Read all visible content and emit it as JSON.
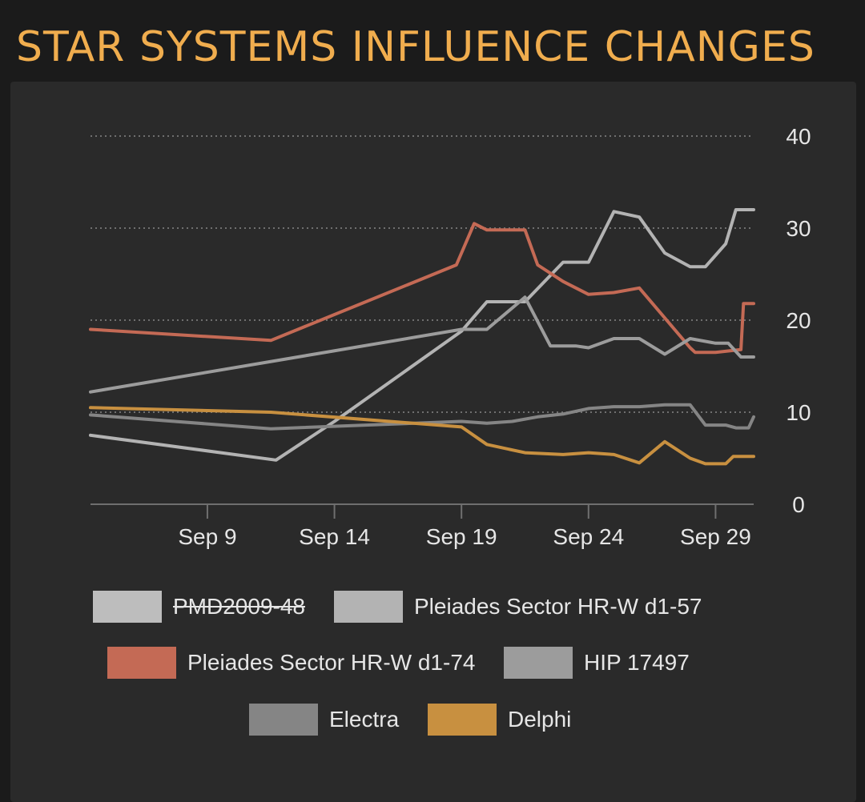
{
  "page": {
    "title": "STAR SYSTEMS INFLUENCE CHANGES"
  },
  "chart_data": {
    "type": "line",
    "title": "STAR SYSTEMS INFLUENCE CHANGES",
    "xlabel": "",
    "ylabel": "",
    "x_tick_labels": [
      "Sep 9",
      "Sep 14",
      "Sep 19",
      "Sep 24",
      "Sep 29"
    ],
    "x_tick_days": [
      9,
      14,
      19,
      24,
      29
    ],
    "xlim": [
      4.4,
      30.5
    ],
    "ylim": [
      0,
      40
    ],
    "y_ticks": [
      0,
      10,
      20,
      30,
      40
    ],
    "y_axis_position": "right",
    "grid": "horizontal-dotted",
    "legend_position": "bottom",
    "series": [
      {
        "name": "PMD2009 48",
        "legend_label": "PMD2009-48",
        "color": "#bdbdbd",
        "hidden": true,
        "x": [],
        "y": []
      },
      {
        "name": "Pleiades Sector HR-W d1-57",
        "legend_label": "Pleiades Sector HR-W d1-57",
        "color": "#b3b3b3",
        "hidden": false,
        "x": [
          4.4,
          11.7,
          14.0,
          19.0,
          20.0,
          21.5,
          23.0,
          24.0,
          25.0,
          26.0,
          27.0,
          28.0,
          28.6,
          29.4,
          29.8,
          30.5
        ],
        "y": [
          7.5,
          4.8,
          9.0,
          18.8,
          22.0,
          22.0,
          26.3,
          26.3,
          31.8,
          31.2,
          27.3,
          25.8,
          25.8,
          28.3,
          32.0,
          32.0
        ]
      },
      {
        "name": "Pleiades Sector HR-W d1-74",
        "legend_label": "Pleiades Sector HR-W d1-74",
        "color": "#c46a55",
        "hidden": false,
        "x": [
          4.4,
          11.5,
          18.8,
          19.5,
          20.0,
          21.5,
          22.0,
          23.0,
          24.0,
          25.0,
          26.0,
          28.0,
          28.2,
          29.0,
          30.0,
          30.1,
          30.5
        ],
        "y": [
          19.0,
          17.8,
          26.0,
          30.5,
          29.8,
          29.8,
          26.0,
          24.2,
          22.8,
          23.0,
          23.5,
          17.0,
          16.5,
          16.5,
          16.8,
          21.8,
          21.8
        ]
      },
      {
        "name": "HIP 17497",
        "legend_label": "HIP 17497",
        "color": "#9c9c9c",
        "hidden": false,
        "x": [
          4.4,
          19.0,
          20.0,
          21.5,
          22.5,
          23.5,
          24.0,
          25.0,
          26.0,
          27.0,
          28.0,
          29.0,
          29.5,
          30.0,
          30.5
        ],
        "y": [
          12.2,
          19.0,
          19.0,
          22.5,
          17.2,
          17.2,
          17.0,
          18.0,
          18.0,
          16.3,
          18.0,
          17.5,
          17.5,
          16.0,
          16.0
        ]
      },
      {
        "name": "Electra",
        "legend_label": "Electra",
        "color": "#858585",
        "hidden": false,
        "x": [
          4.4,
          11.5,
          19.0,
          20.0,
          21.0,
          22.0,
          23.0,
          24.0,
          25.0,
          26.0,
          27.0,
          28.0,
          28.6,
          29.4,
          29.8,
          30.3,
          30.5
        ],
        "y": [
          9.7,
          8.2,
          9.0,
          8.8,
          9.0,
          9.5,
          9.8,
          10.4,
          10.6,
          10.6,
          10.8,
          10.8,
          8.6,
          8.6,
          8.3,
          8.3,
          9.5
        ]
      },
      {
        "name": "Delphi",
        "legend_label": "Delphi",
        "color": "#c89040",
        "hidden": false,
        "x": [
          4.4,
          11.5,
          19.0,
          20.0,
          21.5,
          23.0,
          24.0,
          25.0,
          26.0,
          27.0,
          28.0,
          28.6,
          29.4,
          29.7,
          30.5
        ],
        "y": [
          10.5,
          10.0,
          8.4,
          6.5,
          5.6,
          5.4,
          5.6,
          5.4,
          4.5,
          6.8,
          5.0,
          4.4,
          4.4,
          5.2,
          5.2
        ]
      }
    ]
  }
}
